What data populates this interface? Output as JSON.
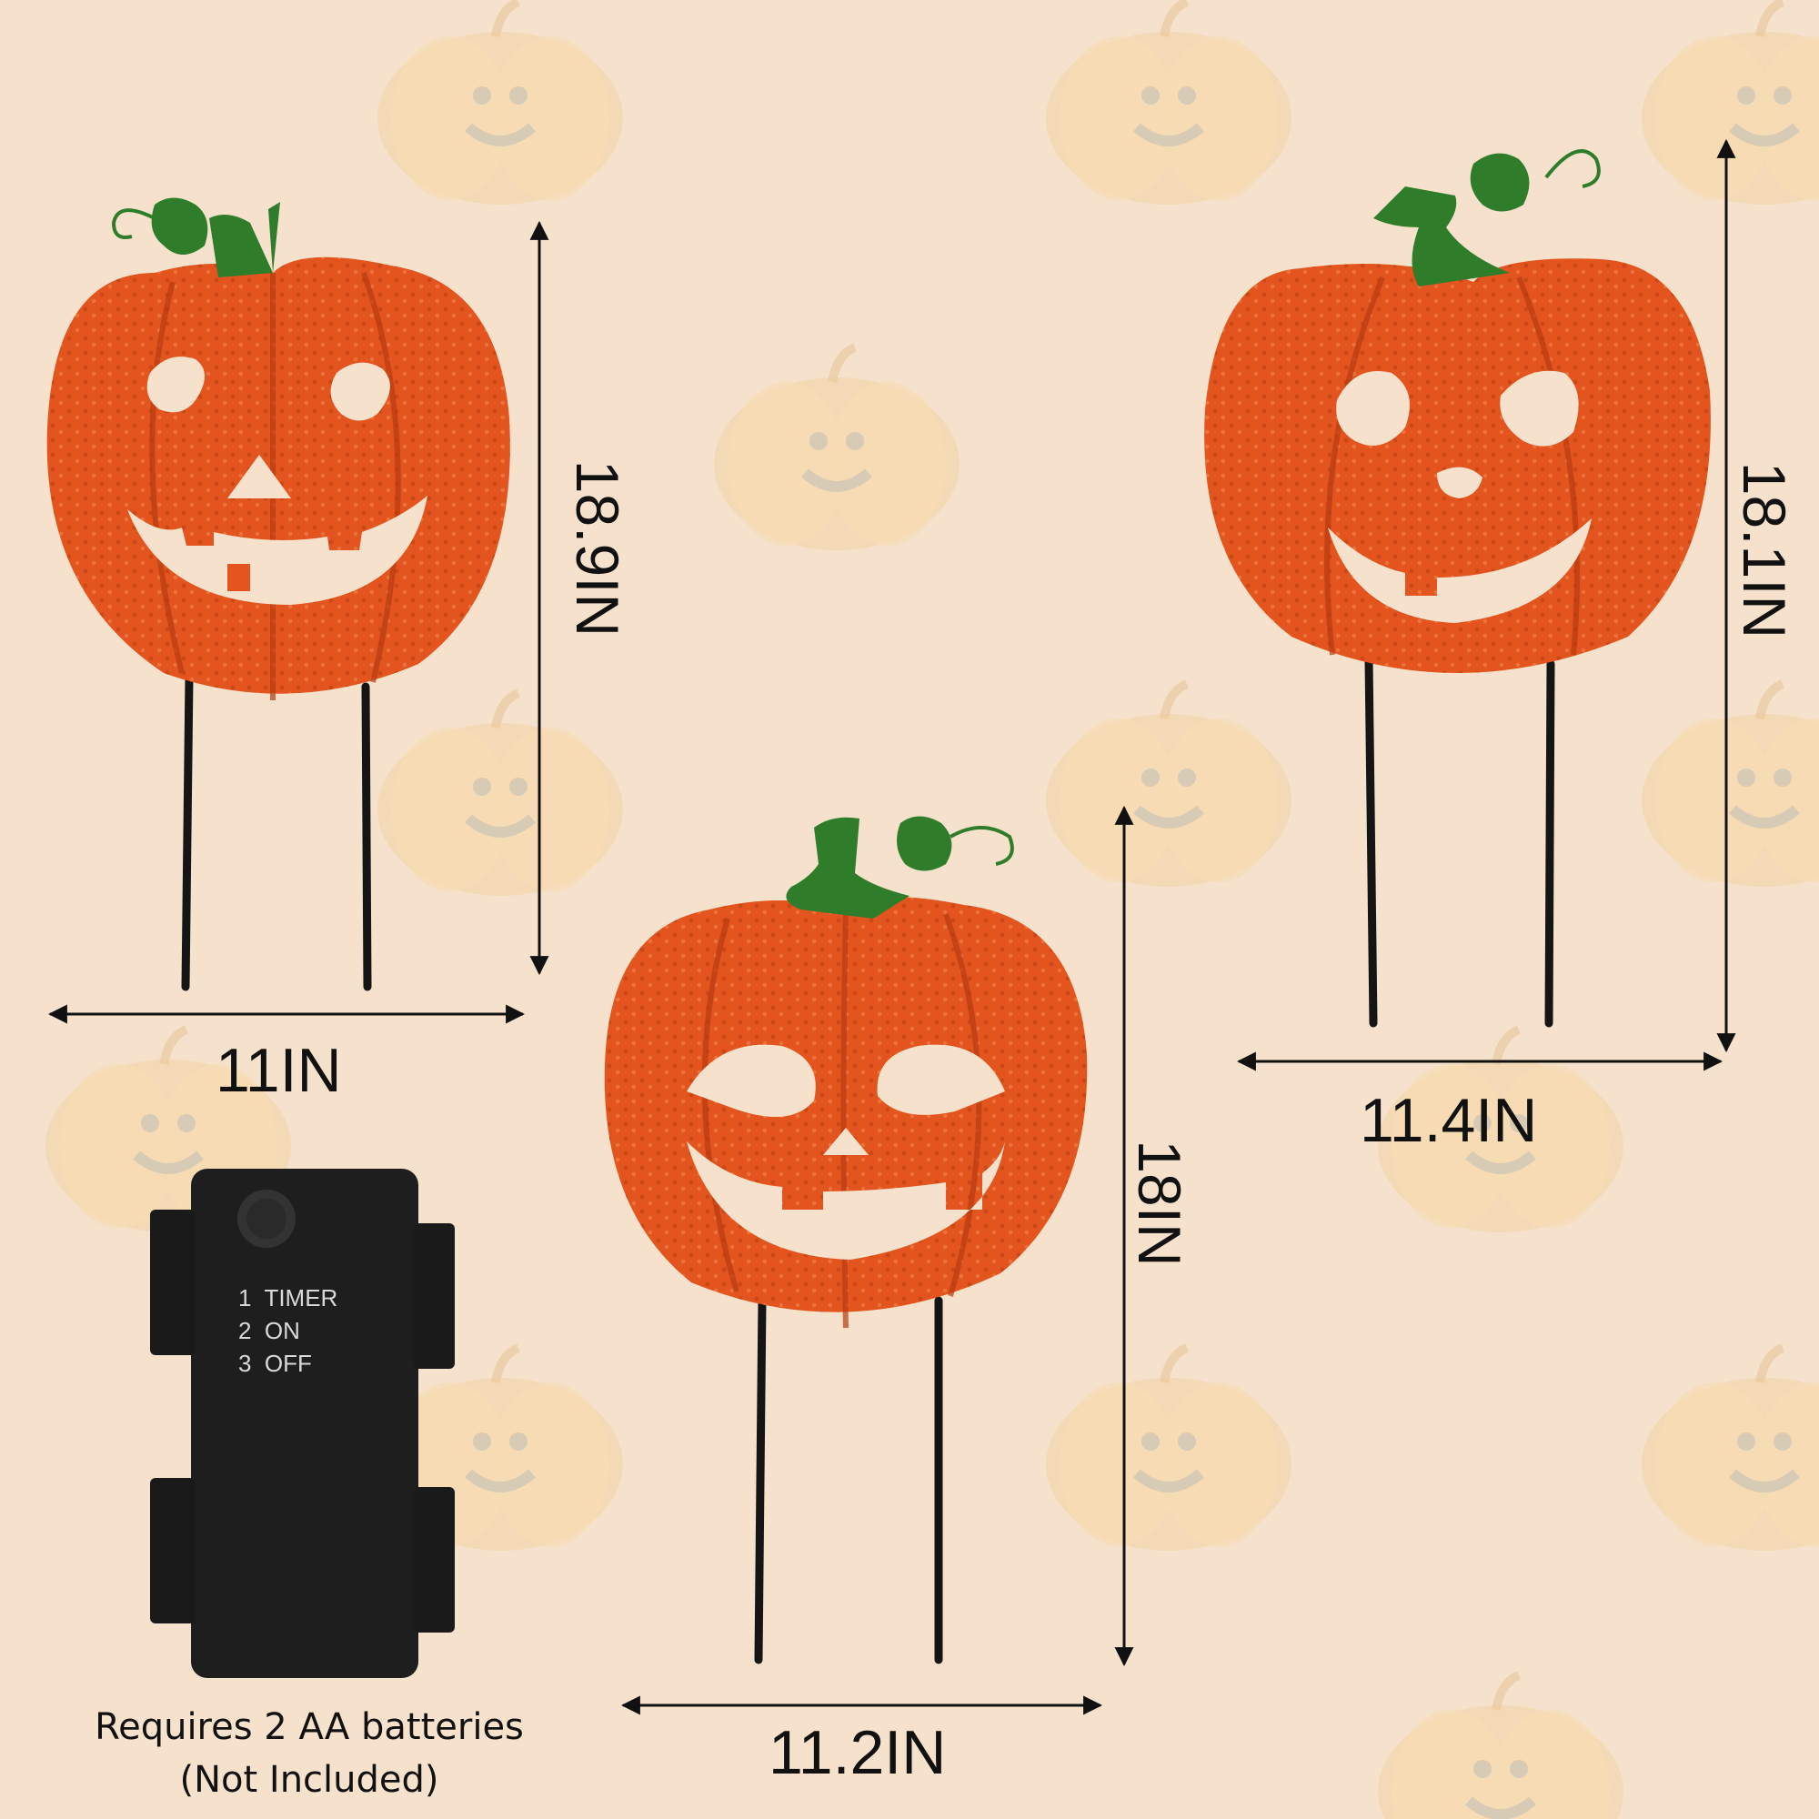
{
  "dimensions": {
    "left_width": "11IN",
    "left_height": "18.9IN",
    "center_width": "11.2IN",
    "center_height": "18IN",
    "right_width": "11.4IN",
    "right_height": "18.1IN"
  },
  "battery_box": {
    "switch_options": [
      "1  TIMER",
      "2  ON",
      "3  OFF"
    ],
    "requirement_line1": "Requires 2 AA batteries",
    "requirement_line2": "(Not  Included)"
  },
  "colors": {
    "background": "#f6e2cc",
    "pumpkin": "#e3541e",
    "pumpkin_dark": "#b83d12",
    "stem": "#2e7d2a",
    "stake": "#1a1a1a",
    "battery_box": "#1c1c1c"
  },
  "icons": [
    "pumpkin-watermark-icon",
    "pumpkin-stake-icon",
    "battery-box-icon",
    "dimension-arrow-icon"
  ]
}
